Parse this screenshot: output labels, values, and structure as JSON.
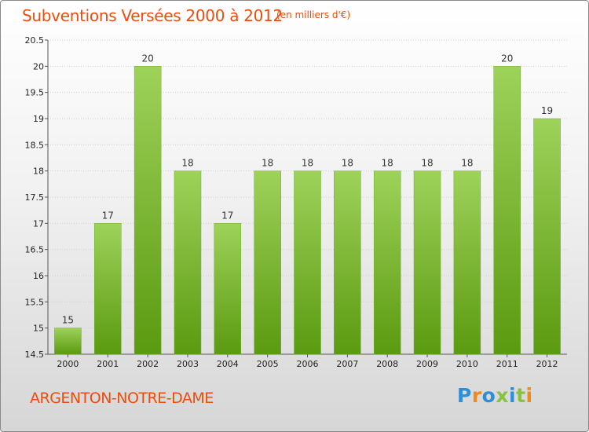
{
  "title": "Subventions Versées 2000 à 2012",
  "subtitle": "(en milliers d'€)",
  "place": "ARGENTON-NOTRE-DAME",
  "logo": {
    "text": "Proxiti",
    "letters": [
      {
        "ch": "P",
        "color": "#2e8fd6"
      },
      {
        "ch": "r",
        "color": "#f08a1c"
      },
      {
        "ch": "o",
        "color": "#2e8fd6"
      },
      {
        "ch": "x",
        "color": "#88c23f"
      },
      {
        "ch": "i",
        "color": "#2e8fd6"
      },
      {
        "ch": "t",
        "color": "#88c23f"
      },
      {
        "ch": "i",
        "color": "#f08a1c"
      }
    ]
  },
  "colors": {
    "title": "#ee4c0a",
    "bar_top": "#9ed25a",
    "bar_bottom": "#5a9a10",
    "grid": "#d0d0d0"
  },
  "chart_data": {
    "type": "bar",
    "categories": [
      "2000",
      "2001",
      "2002",
      "2003",
      "2004",
      "2005",
      "2006",
      "2007",
      "2008",
      "2009",
      "2010",
      "2011",
      "2012"
    ],
    "values": [
      15,
      17,
      20,
      18,
      17,
      18,
      18,
      18,
      18,
      18,
      18,
      20,
      19
    ],
    "data_labels": [
      "15",
      "17",
      "20",
      "18",
      "17",
      "18",
      "18",
      "18",
      "18",
      "18",
      "18",
      "20",
      "19"
    ],
    "ylim": [
      14.5,
      20.5
    ],
    "yticks": [
      14.5,
      15,
      15.5,
      16,
      16.5,
      17,
      17.5,
      18,
      18.5,
      19,
      19.5,
      20,
      20.5
    ],
    "ytick_labels": [
      "14.5",
      "15",
      "15.5",
      "16",
      "16.5",
      "17",
      "17.5",
      "18",
      "18.5",
      "19",
      "19.5",
      "20",
      "20.5"
    ],
    "grid": true,
    "title": "Subventions Versées 2000 à 2012",
    "xlabel": "",
    "ylabel": ""
  }
}
